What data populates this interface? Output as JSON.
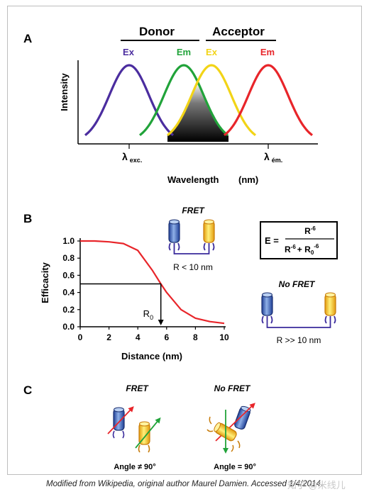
{
  "panel_a": {
    "label": "A",
    "donor_label": "Donor",
    "acceptor_label": "Acceptor",
    "peak_labels": [
      "Ex",
      "Em",
      "Ex",
      "Em"
    ],
    "y_axis_label": "Intensity",
    "x_axis_label": "Wavelength",
    "x_unit": "(nm)",
    "tick_exc_symbol": "λ",
    "tick_exc_sub": "exc.",
    "tick_em_symbol": "λ",
    "tick_em_sub": "ém.",
    "colors": {
      "donor_ex": "#4b2d9f",
      "donor_em": "#21a33a",
      "acceptor_ex": "#f2d417",
      "acceptor_em": "#e8252a"
    }
  },
  "panel_b": {
    "label": "B",
    "fret_label": "FRET",
    "fret_distance": "R < 10 nm",
    "no_fret_label": "No FRET",
    "no_fret_distance": "R >> 10 nm",
    "formula_lhs": "E =",
    "formula_num": "R",
    "formula_num_exp": "-6",
    "formula_den_a": "R",
    "formula_den_a_exp": "-6",
    "formula_den_plus": "+ R",
    "formula_den_sub": "0",
    "formula_den_b_exp": "-6",
    "r0_label": "R",
    "r0_sub": "0",
    "curve_color": "#e8252a"
  },
  "panel_c": {
    "label": "C",
    "fret_label": "FRET",
    "fret_angle": "Angle ≠ 90°",
    "no_fret_label": "No FRET",
    "no_fret_angle": "Angle = 90°"
  },
  "chart_data": {
    "type": "line",
    "x": [
      0,
      1,
      2,
      3,
      4,
      5,
      5.6,
      6,
      7,
      8,
      9,
      10
    ],
    "series": [
      {
        "values": [
          1.0,
          1.0,
          0.99,
          0.97,
          0.89,
          0.66,
          0.5,
          0.4,
          0.2,
          0.1,
          0.06,
          0.04
        ]
      }
    ],
    "xlabel": "Distance (nm)",
    "ylabel": "Efficacity",
    "xlim": [
      0,
      10
    ],
    "ylim": [
      0,
      1
    ],
    "x_ticks": [
      "0",
      "2",
      "4",
      "6",
      "8",
      "10"
    ],
    "y_ticks": [
      "0.0",
      "0.2",
      "0.4",
      "0.6",
      "0.8",
      "1.0"
    ],
    "r0_x": 5.6,
    "r0_y": 0.5,
    "grid": false
  },
  "caption": "Modified from Wikipedia, original author Maurel Damien. Accessed 1/4/2014.",
  "watermark": "知乎 @米线儿"
}
